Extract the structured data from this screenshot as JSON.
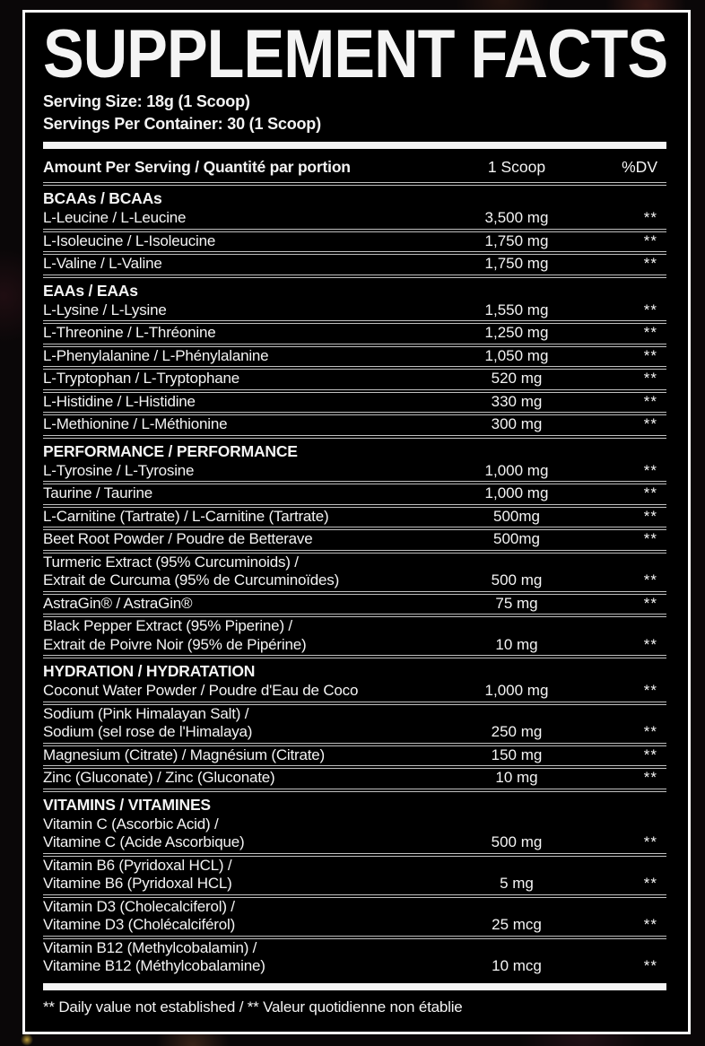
{
  "label": {
    "title": "SUPPLEMENT FACTS",
    "serving_size": "Serving Size: 18g (1 Scoop)",
    "servings_per_container": "Servings Per Container: 30 (1 Scoop)",
    "columns": {
      "amount": "Amount Per Serving / Quantité par portion",
      "scoop": "1 Scoop",
      "dv": "%DV"
    },
    "sections": [
      {
        "header": "BCAAs / BCAAs",
        "rows": [
          {
            "name": [
              "L-Leucine / L-Leucine"
            ],
            "amount": "3,500 mg",
            "dv": "**"
          },
          {
            "name": [
              "L-Isoleucine / L-Isoleucine"
            ],
            "amount": "1,750 mg",
            "dv": "**"
          },
          {
            "name": [
              "L-Valine / L-Valine"
            ],
            "amount": "1,750 mg",
            "dv": "**"
          }
        ]
      },
      {
        "header": "EAAs / EAAs",
        "rows": [
          {
            "name": [
              "L-Lysine / L-Lysine"
            ],
            "amount": "1,550 mg",
            "dv": "**"
          },
          {
            "name": [
              "L-Threonine / L-Thréonine"
            ],
            "amount": "1,250 mg",
            "dv": "**"
          },
          {
            "name": [
              "L-Phenylalanine / L-Phénylalanine"
            ],
            "amount": "1,050 mg",
            "dv": "**"
          },
          {
            "name": [
              "L-Tryptophan / L-Tryptophane"
            ],
            "amount": "520 mg",
            "dv": "**"
          },
          {
            "name": [
              "L-Histidine / L-Histidine"
            ],
            "amount": "330 mg",
            "dv": "**"
          },
          {
            "name": [
              "L-Methionine / L-Méthionine"
            ],
            "amount": "300 mg",
            "dv": "**"
          }
        ]
      },
      {
        "header": "PERFORMANCE / PERFORMANCE",
        "rows": [
          {
            "name": [
              "L-Tyrosine / L-Tyrosine"
            ],
            "amount": "1,000 mg",
            "dv": "**"
          },
          {
            "name": [
              "Taurine / Taurine"
            ],
            "amount": "1,000 mg",
            "dv": "**"
          },
          {
            "name": [
              "L-Carnitine (Tartrate) / L-Carnitine (Tartrate)"
            ],
            "amount": "500mg",
            "dv": "**"
          },
          {
            "name": [
              "Beet Root Powder / Poudre de Betterave"
            ],
            "amount": "500mg",
            "dv": "**"
          },
          {
            "name": [
              "Turmeric Extract (95% Curcuminoids) /",
              "Extrait de Curcuma (95% de Curcuminoïdes)"
            ],
            "amount": "500 mg",
            "dv": "**"
          },
          {
            "name": [
              "AstraGin® / AstraGin®"
            ],
            "amount": "75 mg",
            "dv": "**"
          },
          {
            "name": [
              "Black Pepper Extract (95% Piperine) /",
              "Extrait de Poivre Noir (95% de Pipérine)"
            ],
            "amount": "10 mg",
            "dv": "**"
          }
        ]
      },
      {
        "header": "HYDRATION / HYDRATATION",
        "rows": [
          {
            "name": [
              "Coconut Water Powder / Poudre d'Eau de Coco"
            ],
            "amount": "1,000 mg",
            "dv": "**"
          },
          {
            "name": [
              "Sodium (Pink Himalayan Salt) /",
              "Sodium (sel rose de l'Himalaya)"
            ],
            "amount": "250 mg",
            "dv": "**"
          },
          {
            "name": [
              "Magnesium (Citrate) / Magnésium (Citrate)"
            ],
            "amount": "150 mg",
            "dv": "**"
          },
          {
            "name": [
              "Zinc (Gluconate) / Zinc (Gluconate)"
            ],
            "amount": "10 mg",
            "dv": "**"
          }
        ]
      },
      {
        "header": "VITAMINS / VITAMINES",
        "rows": [
          {
            "name": [
              "Vitamin C (Ascorbic Acid) /",
              "Vitamine C (Acide Ascorbique)"
            ],
            "amount": "500 mg",
            "dv": "**"
          },
          {
            "name": [
              "Vitamin B6 (Pyridoxal HCL) /",
              "Vitamine B6 (Pyridoxal HCL)"
            ],
            "amount": "5 mg",
            "dv": "**"
          },
          {
            "name": [
              "Vitamin D3 (Cholecalciferol) /",
              "Vitamine D3 (Cholécalciférol)"
            ],
            "amount": "25 mcg",
            "dv": "**"
          },
          {
            "name": [
              "Vitamin B12 (Methylcobalamin) /",
              "Vitamine B12 (Méthylcobalamine)"
            ],
            "amount": "10 mcg",
            "dv": "**"
          }
        ]
      }
    ],
    "footnote": "** Daily value not established / ** Valeur quotidienne non établie",
    "colors": {
      "panel_bg": "#000000",
      "frame": "#fdfdfd",
      "text": "#f4f4f4",
      "separator": "#c0c0c0",
      "bar": "#f5f5f5",
      "background": "#0a0708"
    }
  }
}
